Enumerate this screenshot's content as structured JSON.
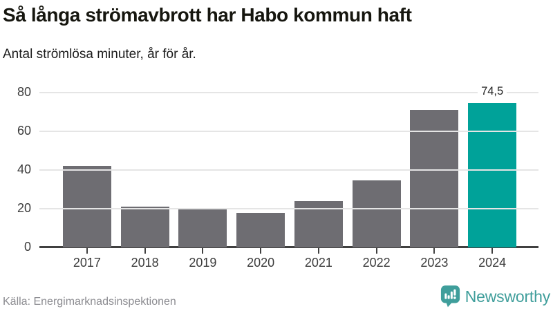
{
  "header": {
    "title": "Så långa strömavbrott har Habo kommun haft",
    "subtitle": "Antal strömlösa minuter, år för år."
  },
  "chart_data": {
    "type": "bar",
    "title": "Så långa strömavbrott har Habo kommun haft",
    "subtitle": "Antal strömlösa minuter, år för år.",
    "categories": [
      "2017",
      "2018",
      "2019",
      "2020",
      "2021",
      "2022",
      "2023",
      "2024"
    ],
    "values": [
      42,
      21,
      19.5,
      18,
      24,
      34.5,
      71,
      74.5
    ],
    "value_labels": [
      "",
      "",
      "",
      "",
      "",
      "",
      "",
      "74,5"
    ],
    "xlabel": "",
    "ylabel": "",
    "ylim": [
      0,
      80
    ],
    "yticks": [
      0,
      20,
      40,
      60,
      80
    ],
    "grid": true,
    "legend": "none",
    "bar_color": "#6e6d72",
    "highlight_color": "#00a299",
    "highlight_index": 7,
    "gridline_color": "#e5e5e5",
    "axis_color": "#404040",
    "tick_label_color": "#3c3c3c"
  },
  "footer": {
    "source": "Källa: Energimarknadsinspektionen",
    "logo_text": "Newsworthy",
    "logo_color": "#3f9e9b"
  }
}
